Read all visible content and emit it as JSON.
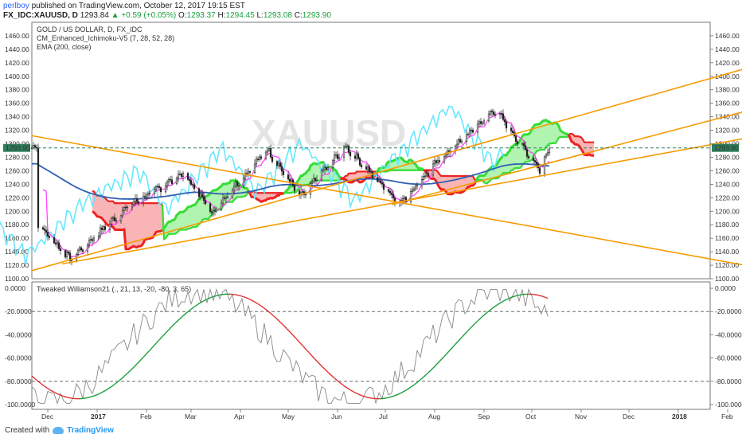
{
  "header": {
    "author": "perlboy",
    "published": "published on TradingView.com, October 12, 2017 19:15 EST",
    "symbol": "FX_IDC:XAUUSD, D",
    "last": "1293.84",
    "change": "+0.59 (+0.05%)",
    "o_label": "O:",
    "o_val": "1293.37",
    "h_label": "H:",
    "h_val": "1294.45",
    "l_label": "L:",
    "l_val": "1293.08",
    "c_label": "C:",
    "c_val": "1293.90"
  },
  "legend": {
    "line1": "GOLD / US DOLLAR, D, FX_IDC",
    "line2": "CM_Enhanced_Ichimoku-V5 (7, 28, 52, 28)",
    "line3": "EMA (200, close)",
    "osc": "Tweaked Williamson21 (., 21, 13, -20, -80, 3, 65)"
  },
  "watermark": "XAUUSD",
  "price_tag": "1293.90",
  "footer": {
    "created_with": "Created with",
    "brand": "TradingView"
  },
  "colors": {
    "candle": "#222222",
    "ema": "#2f5fb3",
    "tenkan": "#ff44ff",
    "chikou": "#66e8ff",
    "kijun": "#b0b0b0",
    "cloud_bull": "#33dd33",
    "cloud_bear": "#ee2222",
    "trend": "#f59b00",
    "osc_line": "#888888",
    "osc_up": "#1e9e3e",
    "osc_down": "#e23030"
  },
  "chart_data": [
    {
      "type": "candlestick",
      "title": "GOLD / US DOLLAR, D, FX_IDC",
      "x_labels": [
        "Dec",
        "2017",
        "Feb",
        "Mar",
        "Apr",
        "May",
        "Jun",
        "Jul",
        "Aug",
        "Sep",
        "Oct",
        "Nov",
        "Dec",
        "2018",
        "Feb"
      ],
      "y_ticks": [
        "1460.00",
        "1440.00",
        "1420.00",
        "1400.00",
        "1380.00",
        "1360.00",
        "1340.00",
        "1320.00",
        "1300.00",
        "1280.00",
        "1260.00",
        "1240.00",
        "1220.00",
        "1200.00",
        "1180.00",
        "1160.00",
        "1140.00",
        "1120.00",
        "1100.00"
      ],
      "ylim": [
        1100,
        1470
      ],
      "close_approx": {
        "dates": [
          "2016-11-25",
          "2016-12-15",
          "2017-01-20",
          "2017-02-24",
          "2017-03-14",
          "2017-04-18",
          "2017-05-09",
          "2017-06-06",
          "2017-07-10",
          "2017-08-02",
          "2017-09-08",
          "2017-09-25",
          "2017-10-06",
          "2017-10-12"
        ],
        "values": [
          1178,
          1128,
          1205,
          1255,
          1198,
          1290,
          1220,
          1295,
          1210,
          1270,
          1350,
          1295,
          1262,
          1293.9
        ]
      },
      "indicators": [
        "CM_Enhanced_Ichimoku-V5 (7, 28, 52, 28)",
        "EMA (200, close)"
      ]
    },
    {
      "type": "line",
      "title": "Tweaked Williamson21 (., 21, 13, -20, -80, 3, 65)",
      "y_ticks": [
        "0.0000",
        "-20.0000",
        "-40.0000",
        "-60.0000",
        "-80.0000",
        "-100.0000"
      ],
      "ylim": [
        -100,
        0
      ],
      "levels": [
        -20,
        -80
      ]
    }
  ]
}
